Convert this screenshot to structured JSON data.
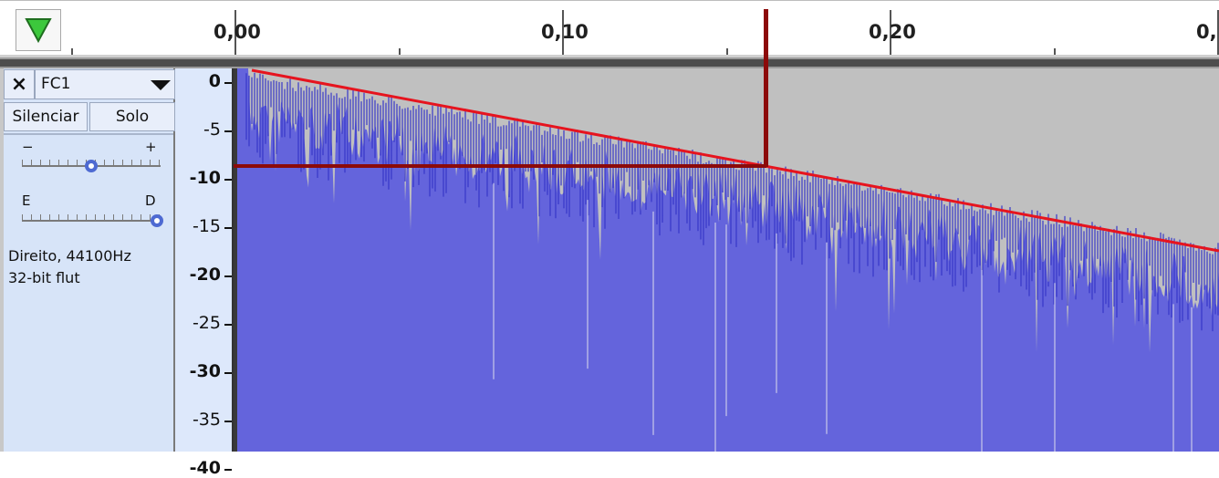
{
  "timeline": {
    "ticks": [
      {
        "label": "0,00"
      },
      {
        "label": "0,10"
      },
      {
        "label": "0,20"
      },
      {
        "label": "0,"
      }
    ]
  },
  "track": {
    "name": "FC1",
    "close_symbol": "×",
    "mute_label": "Silenciar",
    "solo_label": "Solo",
    "gain": {
      "min_label": "−",
      "max_label": "+",
      "value_fraction": 0.5
    },
    "pan": {
      "left_label": "E",
      "right_label": "D",
      "value_fraction": 1.0
    },
    "info_line1": "Direito, 44100Hz",
    "info_line2": "32-bit flut"
  },
  "db_scale": {
    "labels": [
      {
        "text": "0",
        "bold": true
      },
      {
        "text": "-5",
        "bold": false
      },
      {
        "text": "-10",
        "bold": true
      },
      {
        "text": "-15",
        "bold": false
      },
      {
        "text": "-20",
        "bold": true
      },
      {
        "text": "-25",
        "bold": false
      },
      {
        "text": "-30",
        "bold": true
      },
      {
        "text": "-35",
        "bold": false
      },
      {
        "text": "-40",
        "bold": true
      }
    ]
  },
  "colors": {
    "waveform_fill": "#6464dc",
    "waveform_peaks": "#3737c8",
    "envelope_line": "#e6141e",
    "cursor_line": "#8c0a0a",
    "background": "#c0c0c0"
  },
  "icons": {
    "play_head": "green-down-triangle-icon",
    "dropdown": "chevron-down-icon",
    "close": "close-icon"
  }
}
